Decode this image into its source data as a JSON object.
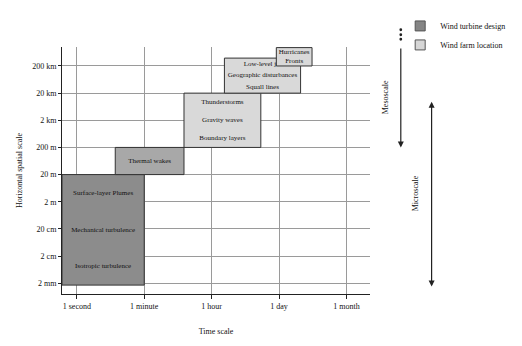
{
  "chart_data": {
    "type": "range_boxes",
    "x_label": "Time scale",
    "y_label": "Horizontal spatial scale",
    "log": "y",
    "grid": true,
    "legend": "upper right",
    "xlim": [
      -0.22,
      4.35
    ],
    "xticks": [
      {
        "value": 0,
        "label": "1 second"
      },
      {
        "value": 1,
        "label": "1 minute"
      },
      {
        "value": 2,
        "label": "1 hour"
      },
      {
        "value": 3,
        "label": "1 day"
      },
      {
        "value": 4,
        "label": "1 month"
      }
    ],
    "ylim": [
      0.0008,
      1000000
    ],
    "yticks": [
      {
        "value": 0.002,
        "label": "2 mm"
      },
      {
        "value": 0.02,
        "label": "2 cm"
      },
      {
        "value": 0.2,
        "label": "20 cm"
      },
      {
        "value": 2,
        "label": "2 m"
      },
      {
        "value": 20,
        "label": "20 m"
      },
      {
        "value": 200,
        "label": "200 m"
      },
      {
        "value": 2000,
        "label": "2 km"
      },
      {
        "value": 20000,
        "label": "20 km"
      },
      {
        "value": 200000,
        "label": "200 km"
      }
    ],
    "series": [
      {
        "name": "Wind turbine design",
        "color": "#858585"
      },
      {
        "name": "Wind farm location",
        "color": "#d6d6d6"
      }
    ],
    "boxes": [
      {
        "labels": [
          "Surface-layer Plumes",
          "Mechanical turbulence",
          "Isotropic turbulence"
        ],
        "x": [
          -0.22,
          1.0
        ],
        "y": [
          0.0017,
          20
        ],
        "color": "#8c8c8c"
      },
      {
        "labels": [
          "Thermal wakes"
        ],
        "x": [
          0.57,
          1.59
        ],
        "y": [
          20,
          200
        ],
        "color": "#a8a8a8"
      },
      {
        "labels": [
          "Thunderstorms",
          "Gravity waves",
          "Boundary layers"
        ],
        "x": [
          1.59,
          2.73
        ],
        "y": [
          200,
          20000
        ],
        "color": "#d9d9d9"
      },
      {
        "labels": [
          "Low-level jet",
          "Geographic disturbances",
          "Squall lines"
        ],
        "x": [
          2.19,
          3.32
        ],
        "y": [
          20000,
          390000
        ],
        "color": "#d9d9d9"
      },
      {
        "labels": [
          "Hurricanes",
          "Fronts"
        ],
        "x": [
          2.96,
          3.49
        ],
        "y": [
          200000,
          950000
        ],
        "color": "#d9d9d9"
      }
    ],
    "scales": [
      {
        "label": "Mesoscale",
        "y": [
          1000000,
          200
        ]
      },
      {
        "label": "Microscale",
        "y": [
          11000,
          0.0015
        ]
      }
    ]
  }
}
